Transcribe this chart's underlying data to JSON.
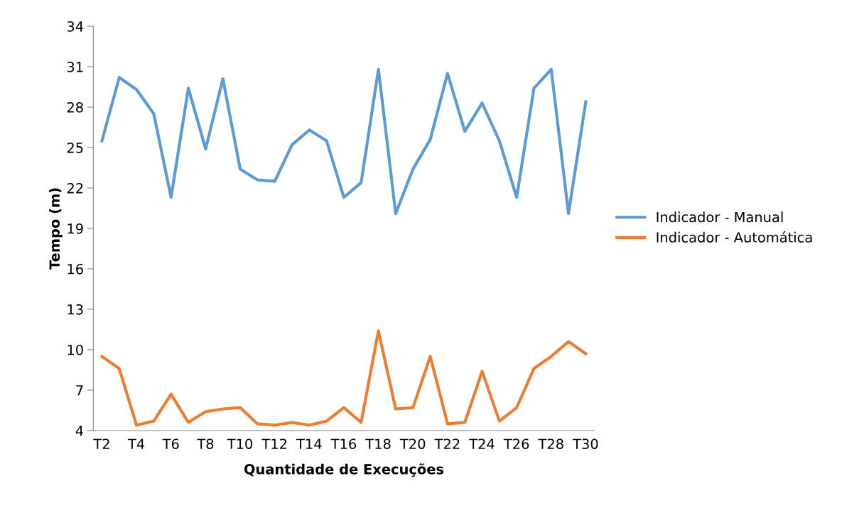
{
  "chart_data": {
    "type": "line",
    "xlabel": "Quantidade de Execuções",
    "ylabel": "Tempo (m)",
    "categories": [
      "T2",
      null,
      "T4",
      null,
      "T6",
      null,
      "T8",
      null,
      "T10",
      null,
      "T12",
      null,
      "T14",
      null,
      "T16",
      null,
      "T18",
      null,
      "T20",
      null,
      "T22",
      null,
      "T24",
      null,
      "T26",
      null,
      "T28",
      null,
      "T30"
    ],
    "series": [
      {
        "name": "Indicador - Manual",
        "color": "#5b9bd5",
        "values": [
          25.5,
          30.2,
          29.3,
          27.5,
          21.3,
          29.4,
          24.9,
          30.1,
          23.4,
          22.6,
          22.5,
          25.2,
          26.3,
          25.5,
          21.3,
          22.4,
          30.8,
          20.1,
          23.4,
          25.6,
          30.5,
          26.2,
          28.3,
          25.5,
          21.3,
          29.4,
          30.8,
          20.1,
          28.4
        ]
      },
      {
        "name": "Indicador - Automática",
        "color": "#ed7d31",
        "values": [
          9.5,
          8.6,
          4.4,
          4.7,
          6.7,
          4.6,
          5.4,
          5.6,
          5.7,
          4.5,
          4.4,
          4.6,
          4.4,
          4.7,
          5.7,
          4.6,
          11.4,
          5.6,
          5.7,
          9.5,
          4.5,
          4.6,
          8.4,
          4.7,
          5.7,
          8.6,
          9.5,
          10.6,
          9.7
        ]
      }
    ],
    "ylim": [
      4,
      34
    ],
    "yticks": [
      4,
      7,
      10,
      13,
      16,
      19,
      22,
      25,
      28,
      31,
      34
    ],
    "grid": false,
    "legend": "right"
  }
}
